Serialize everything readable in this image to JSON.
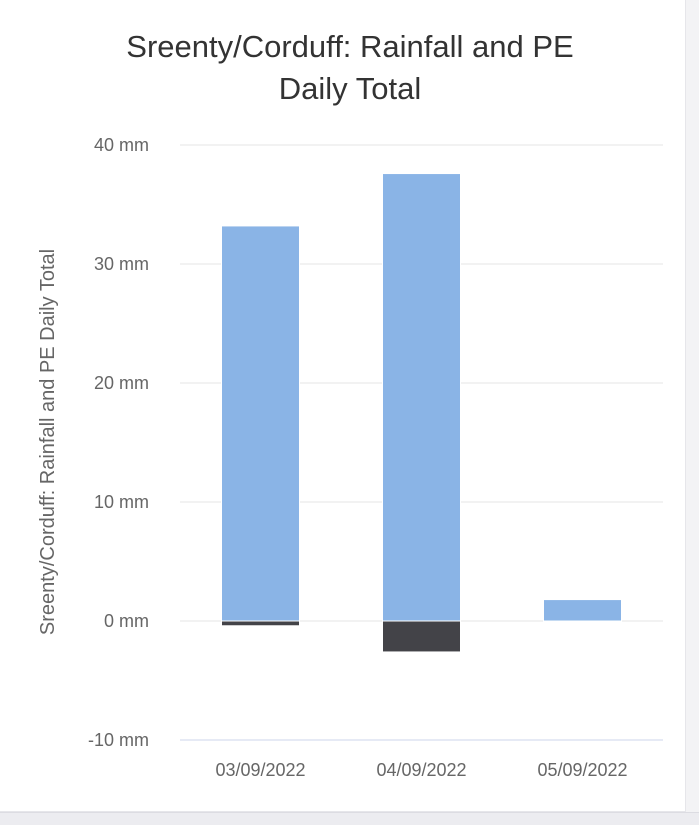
{
  "chart_data": {
    "type": "bar",
    "title_lines": [
      "Sreenty/Corduff: Rainfall and PE",
      "Daily Total"
    ],
    "ylabel": "Sreenty/Corduff: Rainfall and PE Daily Total",
    "xlabel": "",
    "categories": [
      "03/09/2022",
      "04/09/2022",
      "05/09/2022"
    ],
    "series": [
      {
        "values": [
          33.2,
          37.6,
          1.8
        ],
        "color": "#8ab4e6"
      },
      {
        "values": [
          -0.4,
          -2.6,
          0
        ],
        "color": "#434348"
      }
    ],
    "ylim": [
      -10,
      40
    ],
    "yticks": [
      {
        "value": 40,
        "label": "40 mm"
      },
      {
        "value": 30,
        "label": "30 mm"
      },
      {
        "value": 20,
        "label": "20 mm"
      },
      {
        "value": 10,
        "label": "10 mm"
      },
      {
        "value": 0,
        "label": "0 mm"
      },
      {
        "value": -10,
        "label": "-10 mm"
      }
    ],
    "grid": true,
    "legend": "none"
  }
}
